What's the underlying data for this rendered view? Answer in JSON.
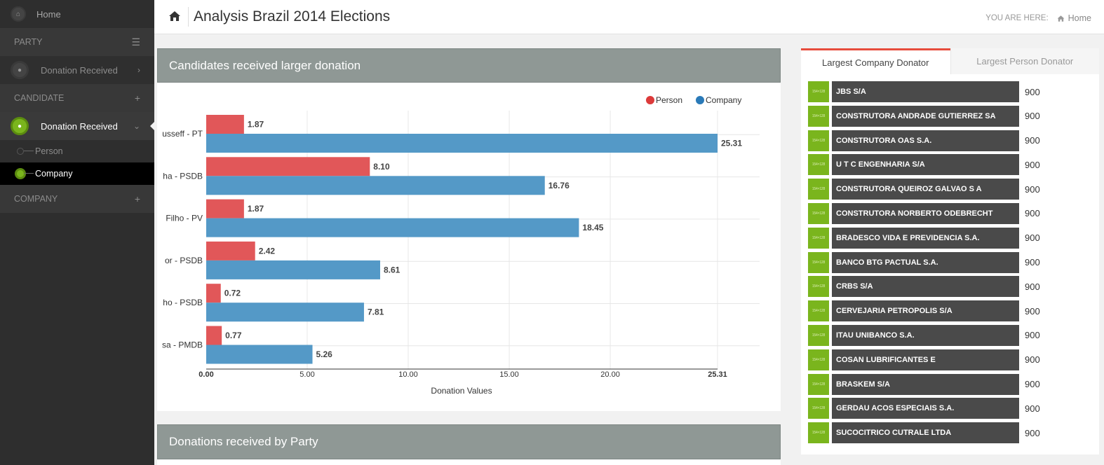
{
  "sidebar": {
    "home": "Home",
    "party_section": "PARTY",
    "party_item": "Donation Received",
    "candidate_section": "CANDIDATE",
    "candidate_item": "Donation Received",
    "sub_person": "Person",
    "sub_company": "Company",
    "company_section": "COMPANY"
  },
  "header": {
    "title": "Analysis Brazil 2014 Elections",
    "you_are_here": "YOU ARE HERE:",
    "crumb_home": "Home"
  },
  "chart_panel": {
    "title": "Candidates received larger donation"
  },
  "party_panel": {
    "title": "Donations received by Party"
  },
  "chart_data": {
    "type": "bar",
    "orientation": "horizontal",
    "title": "Candidates received larger donation",
    "xlabel": "Donation Values",
    "ylabel": "",
    "xlim": [
      0,
      27.4
    ],
    "xticks": [
      "0.00",
      "5.00",
      "10.00",
      "15.00",
      "20.00",
      "25.31"
    ],
    "xtick_values": [
      0,
      5,
      10,
      15,
      20,
      25.31
    ],
    "categories": [
      "usseff - PT",
      "ha - PSDB",
      "Filho - PV",
      "or - PSDB",
      "ho - PSDB",
      "sa - PMDB"
    ],
    "series": [
      {
        "name": "Person",
        "color": "#e15759",
        "values": [
          1.87,
          8.1,
          1.87,
          2.42,
          0.72,
          0.77
        ],
        "labels": [
          "1.87",
          "8.10",
          "1.87",
          "2.42",
          "0.72",
          "0.77"
        ]
      },
      {
        "name": "Company",
        "color": "#5499c7",
        "values": [
          25.31,
          16.76,
          18.45,
          8.61,
          7.81,
          5.26
        ],
        "labels": [
          "25.31",
          "16.76",
          "18.45",
          "8.61",
          "7.81",
          "5.26"
        ]
      }
    ],
    "legend": [
      {
        "name": "Person",
        "color": "#dc3a3a"
      },
      {
        "name": "Company",
        "color": "#2a7ab8"
      }
    ],
    "legend_position": "top-right",
    "grid": true
  },
  "donators": {
    "tab_company": "Largest Company Donator",
    "tab_person": "Largest Person Donator",
    "thumb_label": "154×128",
    "items": [
      {
        "name": "JBS S/A",
        "value": "900"
      },
      {
        "name": "CONSTRUTORA ANDRADE GUTIERREZ SA",
        "value": "900"
      },
      {
        "name": "CONSTRUTORA OAS S.A.",
        "value": "900"
      },
      {
        "name": "U T C ENGENHARIA S/A",
        "value": "900"
      },
      {
        "name": "CONSTRUTORA QUEIROZ GALVAO S A",
        "value": "900"
      },
      {
        "name": "CONSTRUTORA NORBERTO ODEBRECHT",
        "value": "900"
      },
      {
        "name": "BRADESCO VIDA E PREVIDENCIA S.A.",
        "value": "900"
      },
      {
        "name": "BANCO BTG PACTUAL S.A.",
        "value": "900"
      },
      {
        "name": "CRBS S/A",
        "value": "900"
      },
      {
        "name": "CERVEJARIA PETROPOLIS S/A",
        "value": "900"
      },
      {
        "name": "ITAU UNIBANCO S.A.",
        "value": "900"
      },
      {
        "name": "COSAN LUBRIFICANTES E",
        "value": "900"
      },
      {
        "name": "BRASKEM S/A",
        "value": "900"
      },
      {
        "name": "GERDAU ACOS ESPECIAIS S.A.",
        "value": "900"
      },
      {
        "name": "SUCOCITRICO CUTRALE LTDA",
        "value": "900"
      }
    ]
  }
}
